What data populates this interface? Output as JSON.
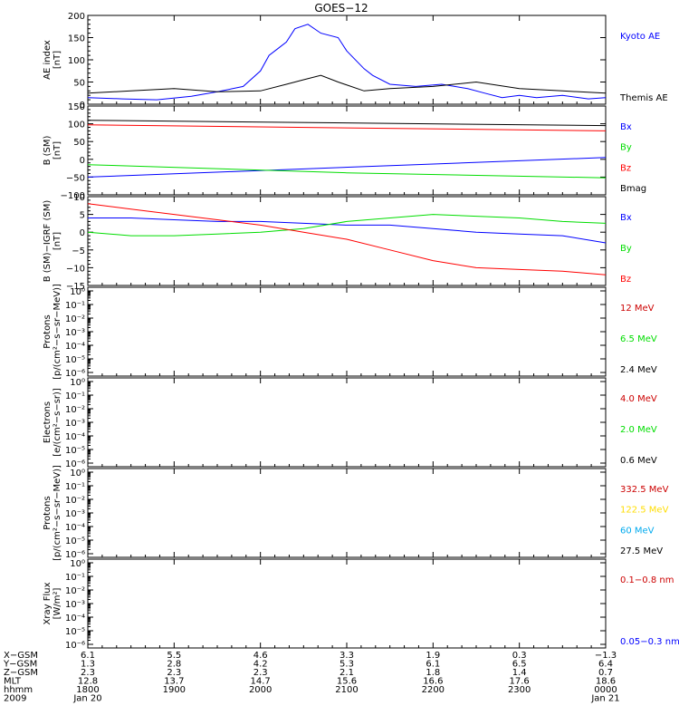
{
  "title": "GOES−12",
  "chart_data": [
    {
      "type": "line",
      "panel": "ae",
      "ylabel": "AE index",
      "yunit": "[nT]",
      "ylim": [
        0,
        200
      ],
      "yticks": [
        "0",
        "50",
        "100",
        "150",
        "200"
      ],
      "series": [
        {
          "name": "Kyoto AE",
          "color": "#0000ff",
          "x": [
            0,
            0.4,
            0.8,
            1.2,
            1.5,
            1.8,
            2.0,
            2.1,
            2.2,
            2.3,
            2.4,
            2.55,
            2.7,
            2.9,
            3.0,
            3.2,
            3.3,
            3.5,
            3.8,
            4.1,
            4.4,
            4.6,
            4.8,
            5.0,
            5.2,
            5.5,
            5.8,
            6.0
          ],
          "y": [
            15,
            12,
            10,
            18,
            28,
            40,
            75,
            110,
            125,
            140,
            170,
            180,
            160,
            150,
            120,
            80,
            65,
            45,
            40,
            45,
            35,
            25,
            15,
            20,
            15,
            20,
            12,
            15
          ]
        },
        {
          "name": "Themis AE",
          "color": "#000000",
          "x": [
            0,
            0.5,
            1.0,
            1.5,
            2.0,
            2.3,
            2.5,
            2.7,
            2.9,
            3.2,
            3.5,
            4.0,
            4.5,
            5.0,
            5.5,
            6.0
          ],
          "y": [
            25,
            30,
            35,
            28,
            30,
            45,
            55,
            65,
            50,
            30,
            35,
            40,
            50,
            35,
            30,
            25
          ]
        }
      ]
    },
    {
      "type": "line",
      "panel": "b_sm",
      "ylabel": "B (SM)",
      "yunit": "[nT]",
      "ylim": [
        -100,
        150
      ],
      "yticks": [
        "−100",
        "−50",
        "0",
        "50",
        "100",
        "150"
      ],
      "series": [
        {
          "name": "Bx",
          "color": "#0000ff",
          "x": [
            0,
            6
          ],
          "y": [
            -50,
            5
          ]
        },
        {
          "name": "By",
          "color": "#00dd00",
          "x": [
            0,
            3,
            6
          ],
          "y": [
            -15,
            -38,
            -52
          ]
        },
        {
          "name": "Bz",
          "color": "#ff0000",
          "x": [
            0,
            6
          ],
          "y": [
            97,
            80
          ]
        },
        {
          "name": "Bmag",
          "color": "#000000",
          "x": [
            0,
            6
          ],
          "y": [
            110,
            95
          ]
        }
      ]
    },
    {
      "type": "line",
      "panel": "b_minus_igrf",
      "ylabel": "B (SM)−IGRF (SM)",
      "yunit": "[nT]",
      "ylim": [
        -15,
        10
      ],
      "yticks": [
        "−15",
        "−10",
        "−5",
        "0",
        "5",
        "10"
      ],
      "series": [
        {
          "name": "Bx",
          "color": "#0000ff",
          "x": [
            0,
            0.5,
            1.0,
            1.5,
            2.0,
            2.5,
            3.0,
            3.5,
            4.0,
            4.5,
            5.0,
            5.5,
            6.0
          ],
          "y": [
            4,
            4,
            3.5,
            3,
            3,
            2.5,
            2,
            2,
            1,
            0,
            -0.5,
            -1,
            -3
          ]
        },
        {
          "name": "By",
          "color": "#00dd00",
          "x": [
            0,
            0.5,
            1.0,
            1.5,
            2.0,
            2.5,
            3.0,
            3.5,
            4.0,
            4.5,
            5.0,
            5.5,
            6.0
          ],
          "y": [
            0,
            -1,
            -1,
            -0.5,
            0,
            1,
            3,
            4,
            5,
            4.5,
            4,
            3,
            2.5
          ]
        },
        {
          "name": "Bz",
          "color": "#ff0000",
          "x": [
            0,
            0.5,
            1.0,
            1.5,
            2.0,
            2.5,
            3.0,
            3.5,
            4.0,
            4.5,
            5.0,
            5.5,
            6.0
          ],
          "y": [
            8,
            6.5,
            5,
            3.5,
            2,
            0,
            -2,
            -5,
            -8,
            -10,
            -10.5,
            -11,
            -12
          ]
        }
      ]
    },
    {
      "type": "line",
      "panel": "protons_low",
      "ylabel": "Protons",
      "yunit": "[p/(cm²−s−sr−MeV)]",
      "log": true,
      "yticks": [
        "10⁰",
        "10⁻¹",
        "10⁻²",
        "10⁻³",
        "10⁻⁴",
        "10⁻⁵",
        "10⁻⁶"
      ],
      "series": [
        {
          "name": "12 MeV",
          "color": "#cc0000"
        },
        {
          "name": "6.5 MeV",
          "color": "#00dd00"
        },
        {
          "name": "2.4 MeV",
          "color": "#000000"
        }
      ]
    },
    {
      "type": "line",
      "panel": "electrons",
      "ylabel": "Electrons",
      "yunit": "[e/(cm²−s−sr)]",
      "log": true,
      "yticks": [
        "10⁰",
        "10⁻¹",
        "10⁻²",
        "10⁻³",
        "10⁻⁴",
        "10⁻⁵",
        "10⁻⁶"
      ],
      "series": [
        {
          "name": "4.0 MeV",
          "color": "#cc0000"
        },
        {
          "name": "2.0 MeV",
          "color": "#00dd00"
        },
        {
          "name": "0.6 MeV",
          "color": "#000000"
        }
      ]
    },
    {
      "type": "line",
      "panel": "protons_high",
      "ylabel": "Protons",
      "yunit": "[p/(cm²−s−sr−MeV)]",
      "log": true,
      "yticks": [
        "10⁰",
        "10⁻¹",
        "10⁻²",
        "10⁻³",
        "10⁻⁴",
        "10⁻⁵",
        "10⁻⁶"
      ],
      "series": [
        {
          "name": "332.5 MeV",
          "color": "#cc0000"
        },
        {
          "name": "122.5 MeV",
          "color": "#ffdd00"
        },
        {
          "name": "60 MeV",
          "color": "#00aaee"
        },
        {
          "name": "27.5 MeV",
          "color": "#000000"
        }
      ]
    },
    {
      "type": "line",
      "panel": "xray",
      "ylabel": "Xray Flux",
      "yunit": "[W/m²]",
      "log": true,
      "yticks": [
        "10⁰",
        "10⁻¹",
        "10⁻²",
        "10⁻³",
        "10⁻⁴",
        "10⁻⁵",
        "10⁻⁶"
      ],
      "series": [
        {
          "name": "0.1−0.8 nm",
          "color": "#cc0000"
        },
        {
          "name": "0.05−0.3 nm",
          "color": "#0000ff"
        }
      ]
    }
  ],
  "xaxis": {
    "row_labels": [
      "X−GSM",
      "Y−GSM",
      "Z−GSM",
      "MLT",
      "hhmm",
      "2009"
    ],
    "columns": [
      [
        "6.1",
        "1.3",
        "2.3",
        "12.8",
        "1800",
        "Jan 20"
      ],
      [
        "5.5",
        "2.8",
        "2.3",
        "13.7",
        "1900",
        ""
      ],
      [
        "4.6",
        "4.2",
        "2.3",
        "14.7",
        "2000",
        ""
      ],
      [
        "3.3",
        "5.3",
        "2.1",
        "15.6",
        "2100",
        ""
      ],
      [
        "1.9",
        "6.1",
        "1.8",
        "16.6",
        "2200",
        ""
      ],
      [
        "0.3",
        "6.5",
        "1.4",
        "17.6",
        "2300",
        ""
      ],
      [
        "−1.3",
        "6.4",
        "0.7",
        "18.6",
        "0000",
        "Jan 21"
      ]
    ]
  }
}
